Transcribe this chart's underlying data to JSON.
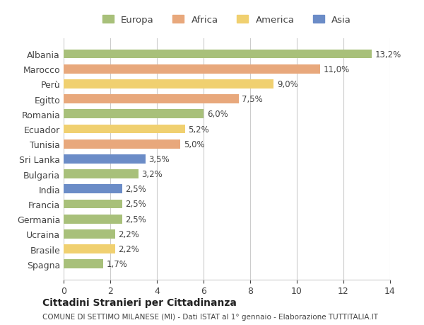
{
  "countries": [
    "Albania",
    "Marocco",
    "Perù",
    "Egitto",
    "Romania",
    "Ecuador",
    "Tunisia",
    "Sri Lanka",
    "Bulgaria",
    "India",
    "Francia",
    "Germania",
    "Ucraina",
    "Brasile",
    "Spagna"
  ],
  "values": [
    13.2,
    11.0,
    9.0,
    7.5,
    6.0,
    5.2,
    5.0,
    3.5,
    3.2,
    2.5,
    2.5,
    2.5,
    2.2,
    2.2,
    1.7
  ],
  "continents": [
    "Europa",
    "Africa",
    "America",
    "Africa",
    "Europa",
    "America",
    "Africa",
    "Asia",
    "Europa",
    "Asia",
    "Europa",
    "Europa",
    "Europa",
    "America",
    "Europa"
  ],
  "colors": {
    "Europa": "#a8c07a",
    "Africa": "#e8a87c",
    "America": "#f0d070",
    "Asia": "#6b8cc7"
  },
  "legend_colors": {
    "Europa": "#a8c07a",
    "Africa": "#e8a87c",
    "America": "#f0d070",
    "Asia": "#6b8cc7"
  },
  "title": "Cittadini Stranieri per Cittadinanza",
  "subtitle": "COMUNE DI SETTIMO MILANESE (MI) - Dati ISTAT al 1° gennaio - Elaborazione TUTTITALIA.IT",
  "xlim": [
    0,
    14
  ],
  "xticks": [
    0,
    2,
    4,
    6,
    8,
    10,
    12,
    14
  ],
  "background_color": "#ffffff",
  "bar_height": 0.6,
  "grid_color": "#cccccc"
}
